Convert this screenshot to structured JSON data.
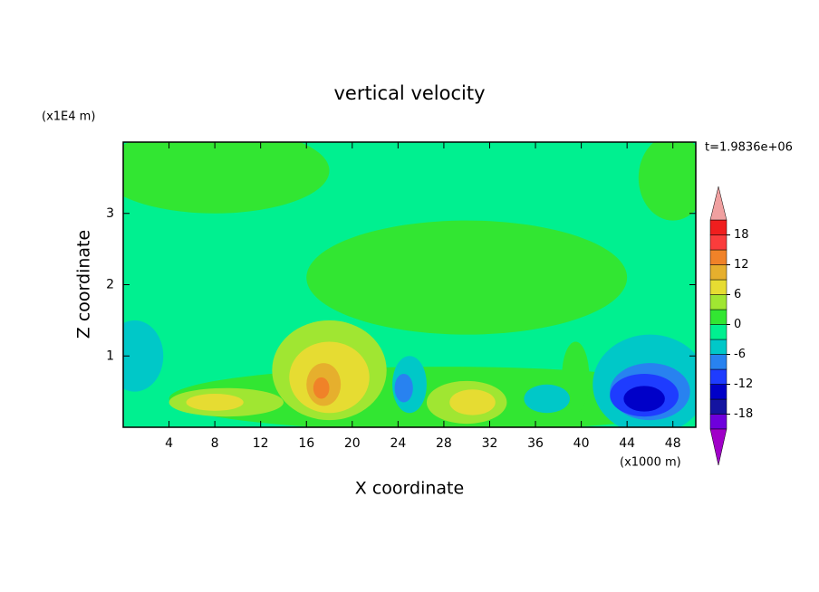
{
  "chart_data": {
    "type": "contour",
    "title": "vertical velocity",
    "xlabel": "X coordinate",
    "ylabel": "Z coordinate",
    "x_unit": "(x1000 m)",
    "y_unit": "(x1E4 m)",
    "time_label": "t=1.9836e+06",
    "xlim": [
      0,
      50
    ],
    "ylim": [
      0,
      4
    ],
    "xticks": [
      4,
      8,
      12,
      16,
      20,
      24,
      28,
      32,
      36,
      40,
      44,
      48
    ],
    "yticks": [
      1,
      2,
      3
    ],
    "levels": [
      -21,
      -18,
      -15,
      -12,
      -9,
      -6,
      -3,
      0,
      3,
      6,
      9,
      12,
      15,
      18,
      21
    ],
    "colors": [
      "#a000c8",
      "#6e00dc",
      "#1414a0",
      "#0000c8",
      "#1e3cff",
      "#2882f0",
      "#00c8c8",
      "#00f090",
      "#32e632",
      "#a0e632",
      "#e6dc32",
      "#e6af2d",
      "#f08228",
      "#fa3c3c",
      "#f01e1e",
      "#f0a0a0"
    ],
    "colorbar_ticks": [
      -18,
      -12,
      -6,
      0,
      6,
      12,
      18
    ],
    "background": -1.5,
    "features": [
      {
        "x": 8,
        "z": 3.6,
        "rx": 10,
        "rz": 0.6,
        "value": 1.5
      },
      {
        "x": 30,
        "z": 2.1,
        "rx": 14,
        "rz": 0.8,
        "value": 1.5
      },
      {
        "x": 48,
        "z": 3.5,
        "rx": 3,
        "rz": 0.6,
        "value": 1.5
      },
      {
        "x": 28,
        "z": 0.4,
        "rx": 24,
        "rz": 0.45,
        "value": 1.5
      },
      {
        "x": 1,
        "z": 1.0,
        "rx": 2.5,
        "rz": 0.5,
        "value": -4.5
      },
      {
        "x": 39.5,
        "z": 0.7,
        "rx": 1.2,
        "rz": 0.5,
        "value": 1.5
      },
      {
        "x": 18,
        "z": 0.8,
        "rx": 5,
        "rz": 0.7,
        "value": 4.5
      },
      {
        "x": 18,
        "z": 0.7,
        "rx": 3.5,
        "rz": 0.5,
        "value": 7.5
      },
      {
        "x": 17.5,
        "z": 0.6,
        "rx": 1.5,
        "rz": 0.3,
        "value": 10.5
      },
      {
        "x": 17.3,
        "z": 0.55,
        "rx": 0.7,
        "rz": 0.15,
        "value": 13.5
      },
      {
        "x": 9,
        "z": 0.35,
        "rx": 5,
        "rz": 0.2,
        "value": 4.5
      },
      {
        "x": 8,
        "z": 0.35,
        "rx": 2.5,
        "rz": 0.12,
        "value": 7.5
      },
      {
        "x": 30,
        "z": 0.35,
        "rx": 3.5,
        "rz": 0.3,
        "value": 4.5
      },
      {
        "x": 30.5,
        "z": 0.35,
        "rx": 2,
        "rz": 0.18,
        "value": 7.5
      },
      {
        "x": 25,
        "z": 0.6,
        "rx": 1.5,
        "rz": 0.4,
        "value": -4.5
      },
      {
        "x": 24.5,
        "z": 0.55,
        "rx": 0.8,
        "rz": 0.2,
        "value": -7.5
      },
      {
        "x": 37,
        "z": 0.4,
        "rx": 2,
        "rz": 0.2,
        "value": -4.5
      },
      {
        "x": 46,
        "z": 0.6,
        "rx": 5,
        "rz": 0.7,
        "value": -4.5
      },
      {
        "x": 46,
        "z": 0.5,
        "rx": 3.5,
        "rz": 0.4,
        "value": -7.5
      },
      {
        "x": 45.5,
        "z": 0.45,
        "rx": 3,
        "rz": 0.3,
        "value": -10.5
      },
      {
        "x": 45.5,
        "z": 0.4,
        "rx": 1.8,
        "rz": 0.18,
        "value": -13.5
      }
    ]
  }
}
